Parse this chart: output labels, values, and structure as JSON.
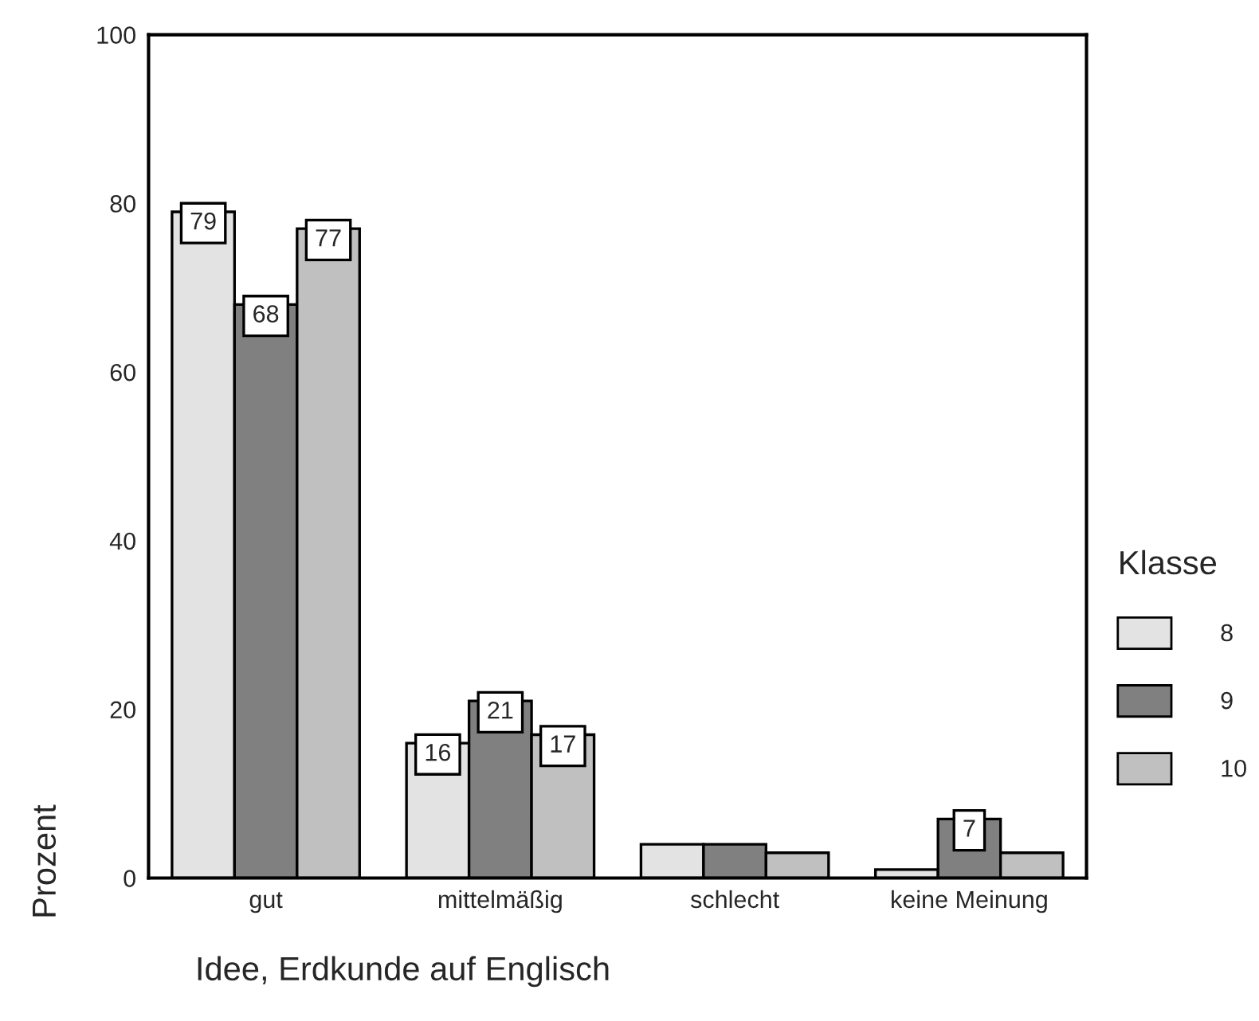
{
  "chart_data": {
    "type": "bar",
    "xlabel": "Idee, Erdkunde auf Englisch",
    "ylabel": "Prozent",
    "legend_title": "Klasse",
    "categories": [
      "gut",
      "mittelmäßig",
      "schlecht",
      "keine Meinung"
    ],
    "series": [
      {
        "name": "8",
        "color": "#e3e3e3",
        "values": [
          79,
          16,
          4,
          1
        ],
        "value_labels": [
          "79",
          "16",
          null,
          null
        ]
      },
      {
        "name": "9",
        "color": "#808080",
        "values": [
          68,
          21,
          4,
          7
        ],
        "value_labels": [
          "68",
          "21",
          null,
          "7"
        ]
      },
      {
        "name": "10",
        "color": "#c0c0c0",
        "values": [
          77,
          17,
          3,
          3
        ],
        "value_labels": [
          "77",
          "17",
          null,
          null
        ]
      }
    ],
    "ylim": [
      0,
      100
    ],
    "yticks": [
      0,
      20,
      40,
      60,
      80,
      100
    ],
    "grid": false,
    "legend": "right"
  }
}
